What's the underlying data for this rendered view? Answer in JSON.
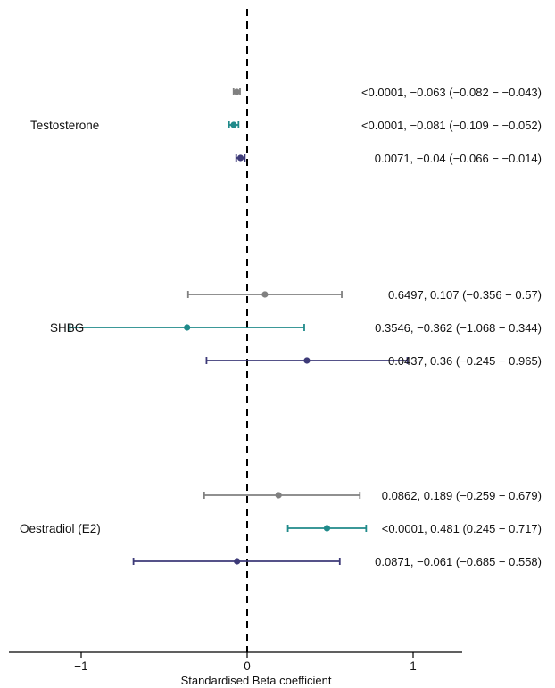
{
  "chart_data": {
    "type": "forest",
    "xlabel": "Standardised Beta coefficient",
    "xlim": [
      -1.8,
      1.6
    ],
    "xticks": [
      -1,
      0,
      1
    ],
    "xtick_labels": [
      "−1",
      "0",
      "1"
    ],
    "reference_line_x": 0,
    "grid": false,
    "series_colors": [
      "#808080",
      "#1f8a8a",
      "#3d3a78"
    ],
    "groups": [
      {
        "label": "Testosterone",
        "rows": [
          {
            "beta": -0.063,
            "lower": -0.082,
            "upper": -0.043,
            "annotation": "<0.0001, −0.063 (−0.082 − −0.043)"
          },
          {
            "beta": -0.081,
            "lower": -0.109,
            "upper": -0.052,
            "annotation": "<0.0001, −0.081 (−0.109 − −0.052)"
          },
          {
            "beta": -0.04,
            "lower": -0.066,
            "upper": -0.014,
            "annotation": "0.0071, −0.04 (−0.066 − −0.014)"
          }
        ]
      },
      {
        "label": "SHBG",
        "rows": [
          {
            "beta": 0.107,
            "lower": -0.356,
            "upper": 0.57,
            "annotation": "0.6497, 0.107 (−0.356 − 0.57)"
          },
          {
            "beta": -0.362,
            "lower": -1.068,
            "upper": 0.344,
            "annotation": "0.3546, −0.362 (−1.068 − 0.344)"
          },
          {
            "beta": 0.36,
            "lower": -0.245,
            "upper": 0.965,
            "annotation": "0.0437, 0.36 (−0.245 − 0.965)"
          }
        ]
      },
      {
        "label": "Oestradiol (E2)",
        "rows": [
          {
            "beta": 0.189,
            "lower": -0.259,
            "upper": 0.679,
            "annotation": "0.0862, 0.189 (−0.259 − 0.679)"
          },
          {
            "beta": 0.481,
            "lower": 0.245,
            "upper": 0.717,
            "annotation": "<0.0001, 0.481 (0.245 − 0.717)"
          },
          {
            "beta": -0.061,
            "lower": -0.685,
            "upper": 0.558,
            "annotation": "0.0871, −0.061 (−0.685 − 0.558)"
          }
        ]
      }
    ]
  }
}
